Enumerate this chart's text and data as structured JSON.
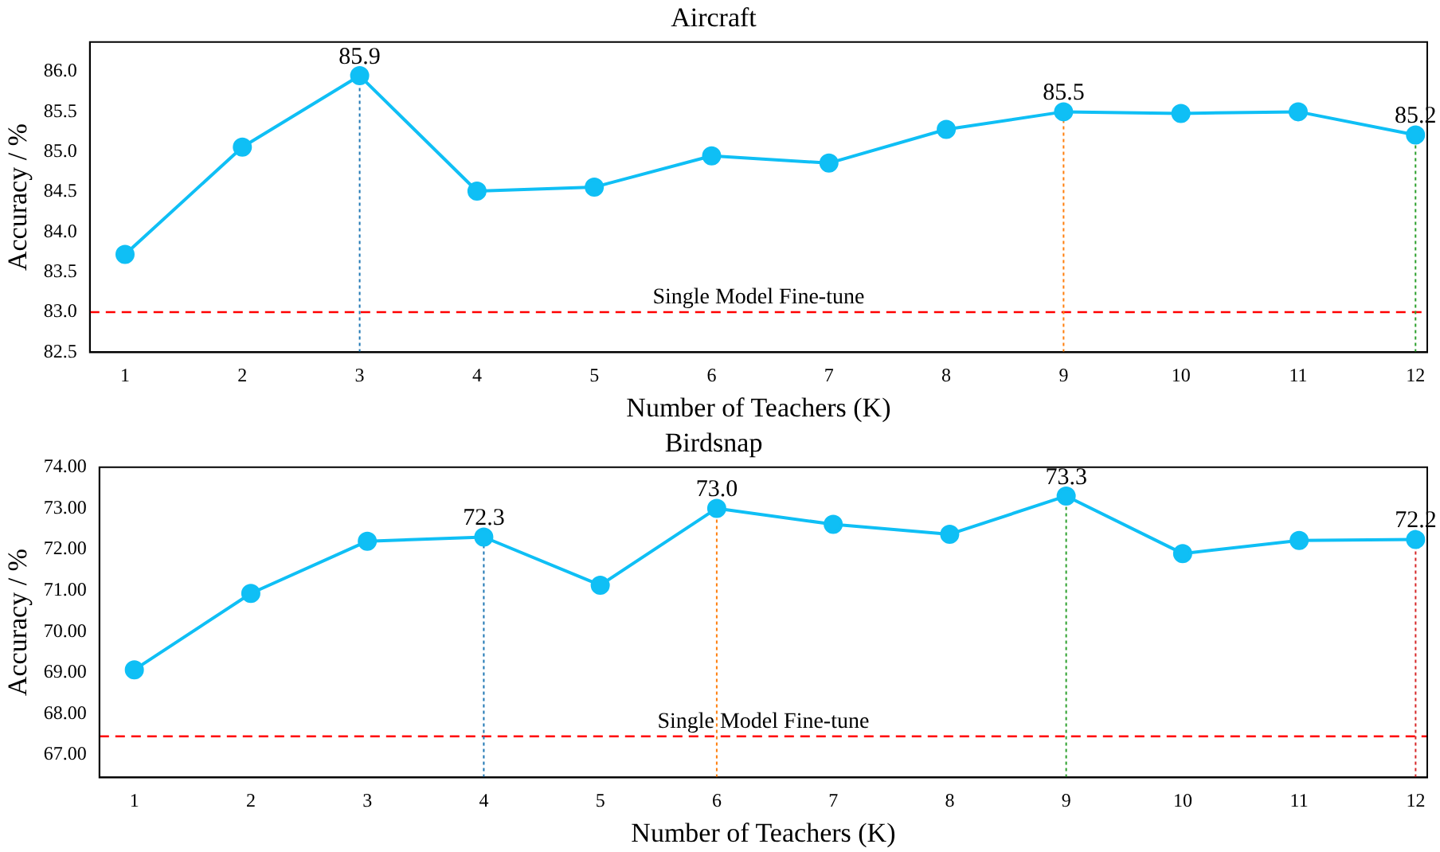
{
  "chart_data": [
    {
      "type": "line",
      "title": "Aircraft",
      "xlabel": "Number of Teachers (K)",
      "ylabel": "Accuracy / %",
      "x": [
        1,
        2,
        3,
        4,
        5,
        6,
        7,
        8,
        9,
        10,
        11,
        12
      ],
      "xlim": [
        0.7,
        12.1
      ],
      "xticks": [
        1,
        2,
        3,
        4,
        5,
        6,
        7,
        8,
        9,
        10,
        11,
        12
      ],
      "ylim": [
        82.5,
        86.37
      ],
      "yticks": [
        {
          "value": 82.5,
          "label": "82.5"
        },
        {
          "value": 83,
          "label": "83.0"
        },
        {
          "value": 83.5,
          "label": "83.5"
        },
        {
          "value": 84,
          "label": "84.0"
        },
        {
          "value": 84.5,
          "label": "84.5"
        },
        {
          "value": 85,
          "label": "85.0"
        },
        {
          "value": 85.5,
          "label": "85.5"
        },
        {
          "value": 86,
          "label": "86.0"
        }
      ],
      "grid": false,
      "legend": false,
      "marker": "circle",
      "line_style": "solid",
      "series": [
        {
          "color": "#0fbff5",
          "values": [
            83.72,
            85.06,
            85.95,
            84.51,
            84.56,
            84.95,
            84.86,
            85.28,
            85.5,
            85.48,
            85.5,
            85.21
          ],
          "value_labels": [
            null,
            null,
            "85.9",
            null,
            null,
            null,
            null,
            null,
            "85.5",
            null,
            null,
            "85.2"
          ]
        }
      ],
      "ref_lines": [
        {
          "axis": "y",
          "value": 83.0,
          "label": "Single Model Fine-tune",
          "color": "#ff0000",
          "line_style": "dashed"
        },
        {
          "axis": "x",
          "value": 3,
          "color": "#1f77b4",
          "line_style": "dotted"
        },
        {
          "axis": "x",
          "value": 9,
          "color": "#ff7f0e",
          "line_style": "dotted"
        },
        {
          "axis": "x",
          "value": 12,
          "color": "#2ca02c",
          "line_style": "dotted"
        }
      ]
    },
    {
      "type": "line",
      "title": "Birdsnap",
      "xlabel": "Number of Teachers (K)",
      "ylabel": "Accuracy / %",
      "x": [
        1,
        2,
        3,
        4,
        5,
        6,
        7,
        8,
        9,
        10,
        11,
        12
      ],
      "xlim": [
        0.7,
        12.1
      ],
      "xticks": [
        1,
        2,
        3,
        4,
        5,
        6,
        7,
        8,
        9,
        10,
        11,
        12
      ],
      "ylim": [
        66.45,
        74
      ],
      "yticks": [
        {
          "value": 67,
          "label": "67.00"
        },
        {
          "value": 68,
          "label": "68.00"
        },
        {
          "value": 69,
          "label": "69.00"
        },
        {
          "value": 70,
          "label": "70.00"
        },
        {
          "value": 71,
          "label": "71.00"
        },
        {
          "value": 72,
          "label": "72.00"
        },
        {
          "value": 73,
          "label": "73.00"
        },
        {
          "value": 74,
          "label": "74.00"
        }
      ],
      "grid": false,
      "legend": false,
      "marker": "circle",
      "line_style": "solid",
      "series": [
        {
          "color": "#0fbff5",
          "values": [
            69.07,
            70.93,
            72.2,
            72.3,
            71.13,
            73.0,
            72.61,
            72.37,
            73.3,
            71.9,
            72.22,
            72.24
          ],
          "value_labels": [
            null,
            null,
            null,
            "72.3",
            null,
            "73.0",
            null,
            null,
            "73.3",
            null,
            null,
            "72.2"
          ]
        }
      ],
      "ref_lines": [
        {
          "axis": "y",
          "value": 67.45,
          "label": "Single Model Fine-tune",
          "color": "#ff0000",
          "line_style": "dashed"
        },
        {
          "axis": "x",
          "value": 4,
          "color": "#1f77b4",
          "line_style": "dotted"
        },
        {
          "axis": "x",
          "value": 6,
          "color": "#ff7f0e",
          "line_style": "dotted"
        },
        {
          "axis": "x",
          "value": 9,
          "color": "#2ca02c",
          "line_style": "dotted"
        },
        {
          "axis": "x",
          "value": 12,
          "color": "#d62728",
          "line_style": "dotted"
        }
      ]
    }
  ]
}
